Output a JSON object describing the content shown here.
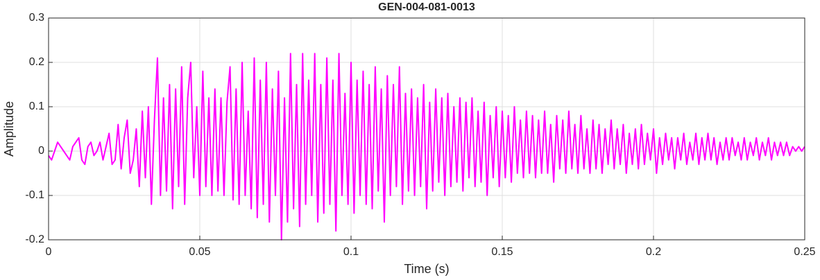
{
  "chart_data": {
    "type": "line",
    "title": "GEN-004-081-0013",
    "xlabel": "Time (s)",
    "ylabel": "Amplitude",
    "color": "#ff00ff",
    "grid": true,
    "xlim": [
      0,
      0.25
    ],
    "ylim": [
      -0.2,
      0.3
    ],
    "xticks": [
      0,
      0.05,
      0.1,
      0.15,
      0.2,
      0.25
    ],
    "yticks": [
      -0.2,
      -0.1,
      0,
      0.1,
      0.2,
      0.3
    ],
    "x": [
      0,
      0.001,
      0.002,
      0.003,
      0.004,
      0.005,
      0.006,
      0.007,
      0.008,
      0.009,
      0.01,
      0.011,
      0.012,
      0.013,
      0.014,
      0.015,
      0.016,
      0.017,
      0.018,
      0.019,
      0.02,
      0.021,
      0.022,
      0.023,
      0.024,
      0.025,
      0.026,
      0.027,
      0.028,
      0.029,
      0.03,
      0.031,
      0.032,
      0.033,
      0.034,
      0.035,
      0.036,
      0.037,
      0.038,
      0.039,
      0.04,
      0.041,
      0.042,
      0.043,
      0.044,
      0.045,
      0.046,
      0.047,
      0.048,
      0.049,
      0.05,
      0.051,
      0.052,
      0.053,
      0.054,
      0.055,
      0.056,
      0.057,
      0.058,
      0.059,
      0.06,
      0.061,
      0.062,
      0.063,
      0.064,
      0.065,
      0.066,
      0.067,
      0.068,
      0.069,
      0.07,
      0.071,
      0.072,
      0.073,
      0.074,
      0.075,
      0.076,
      0.077,
      0.078,
      0.079,
      0.08,
      0.081,
      0.082,
      0.083,
      0.084,
      0.085,
      0.086,
      0.087,
      0.088,
      0.089,
      0.09,
      0.091,
      0.092,
      0.093,
      0.094,
      0.095,
      0.096,
      0.097,
      0.098,
      0.099,
      0.1,
      0.101,
      0.102,
      0.103,
      0.104,
      0.105,
      0.106,
      0.107,
      0.108,
      0.109,
      0.11,
      0.111,
      0.112,
      0.113,
      0.114,
      0.115,
      0.116,
      0.117,
      0.118,
      0.119,
      0.12,
      0.121,
      0.122,
      0.123,
      0.124,
      0.125,
      0.126,
      0.127,
      0.128,
      0.129,
      0.13,
      0.131,
      0.132,
      0.133,
      0.134,
      0.135,
      0.136,
      0.137,
      0.138,
      0.139,
      0.14,
      0.141,
      0.142,
      0.143,
      0.144,
      0.145,
      0.146,
      0.147,
      0.148,
      0.149,
      0.15,
      0.151,
      0.152,
      0.153,
      0.154,
      0.155,
      0.156,
      0.157,
      0.158,
      0.159,
      0.16,
      0.161,
      0.162,
      0.163,
      0.164,
      0.165,
      0.166,
      0.167,
      0.168,
      0.169,
      0.17,
      0.171,
      0.172,
      0.173,
      0.174,
      0.175,
      0.176,
      0.177,
      0.178,
      0.179,
      0.18,
      0.181,
      0.182,
      0.183,
      0.184,
      0.185,
      0.186,
      0.187,
      0.188,
      0.189,
      0.19,
      0.191,
      0.192,
      0.193,
      0.194,
      0.195,
      0.196,
      0.197,
      0.198,
      0.199,
      0.2,
      0.201,
      0.202,
      0.203,
      0.204,
      0.205,
      0.206,
      0.207,
      0.208,
      0.209,
      0.21,
      0.211,
      0.212,
      0.213,
      0.214,
      0.215,
      0.216,
      0.217,
      0.218,
      0.219,
      0.22,
      0.221,
      0.222,
      0.223,
      0.224,
      0.225,
      0.226,
      0.227,
      0.228,
      0.229,
      0.23,
      0.231,
      0.232,
      0.233,
      0.234,
      0.235,
      0.236,
      0.237,
      0.238,
      0.239,
      0.24,
      0.241,
      0.242,
      0.243,
      0.244,
      0.245,
      0.246,
      0.247,
      0.248,
      0.249,
      0.25
    ],
    "values": [
      -0.01,
      -0.02,
      0,
      0.02,
      0.01,
      0,
      -0.01,
      -0.02,
      0.01,
      0.02,
      0.03,
      -0.02,
      -0.03,
      0.01,
      0.02,
      -0.01,
      0,
      0.02,
      -0.02,
      0.01,
      0.04,
      -0.03,
      -0.02,
      0.06,
      -0.04,
      0.03,
      0.07,
      -0.05,
      -0.02,
      0.05,
      -0.08,
      0.09,
      -0.06,
      0.1,
      -0.12,
      0.07,
      0.21,
      -0.1,
      0.12,
      -0.09,
      0.15,
      -0.13,
      0.14,
      -0.08,
      0.19,
      -0.12,
      0.12,
      0.2,
      -0.06,
      0.1,
      -0.1,
      0.18,
      -0.08,
      0.12,
      -0.1,
      0.14,
      -0.09,
      0.12,
      -0.1,
      0.11,
      0.19,
      -0.11,
      0.14,
      -0.12,
      0.2,
      -0.1,
      0.09,
      -0.13,
      0.21,
      -0.15,
      0.16,
      -0.12,
      0.2,
      -0.16,
      0.14,
      -0.1,
      0.18,
      -0.2,
      0.12,
      -0.16,
      0.22,
      -0.13,
      0.15,
      -0.17,
      0.22,
      -0.12,
      0.16,
      -0.1,
      0.22,
      -0.16,
      0.15,
      -0.14,
      0.21,
      -0.12,
      0.16,
      -0.18,
      0.22,
      -0.1,
      0.13,
      -0.12,
      0.2,
      -0.14,
      0.16,
      -0.1,
      0.18,
      -0.12,
      0.15,
      -0.13,
      0.19,
      -0.09,
      0.14,
      -0.16,
      0.17,
      -0.1,
      0.15,
      -0.08,
      0.19,
      -0.12,
      0.13,
      -0.09,
      0.14,
      -0.1,
      0.12,
      -0.08,
      0.15,
      -0.13,
      0.11,
      -0.09,
      0.14,
      -0.07,
      0.12,
      -0.1,
      0.13,
      -0.08,
      0.1,
      -0.07,
      0.12,
      -0.09,
      0.11,
      -0.06,
      0.12,
      -0.08,
      0.09,
      -0.07,
      0.11,
      -0.1,
      0.08,
      -0.06,
      0.1,
      -0.08,
      0.09,
      -0.06,
      0.08,
      -0.07,
      0.1,
      -0.05,
      0.07,
      -0.06,
      0.09,
      -0.05,
      0.08,
      -0.06,
      0.07,
      -0.05,
      0.09,
      -0.05,
      0.06,
      -0.07,
      0.08,
      -0.04,
      0.07,
      -0.05,
      0.09,
      -0.04,
      0.06,
      -0.05,
      0.08,
      -0.04,
      0.05,
      -0.05,
      0.07,
      -0.04,
      0.06,
      -0.05,
      0.05,
      -0.03,
      0.07,
      -0.04,
      0.05,
      -0.03,
      0.06,
      -0.05,
      0.04,
      -0.03,
      0.05,
      -0.04,
      0.06,
      -0.03,
      0.04,
      -0.02,
      0.05,
      -0.05,
      0.03,
      -0.03,
      0.04,
      -0.02,
      0.03,
      -0.04,
      0.03,
      -0.02,
      0.04,
      -0.03,
      0.02,
      -0.02,
      0.04,
      -0.03,
      0.03,
      -0.02,
      0.04,
      -0.02,
      0.03,
      -0.03,
      0.02,
      -0.02,
      0.03,
      -0.02,
      0.03,
      -0.01,
      0.02,
      -0.02,
      0.03,
      -0.02,
      0.02,
      -0.01,
      0.03,
      -0.02,
      0.02,
      -0.01,
      0.03,
      -0.02,
      0.02,
      -0.01,
      0.02,
      -0.01,
      0.02,
      -0.01,
      0.01,
      0,
      0.01,
      0,
      0.01
    ]
  }
}
